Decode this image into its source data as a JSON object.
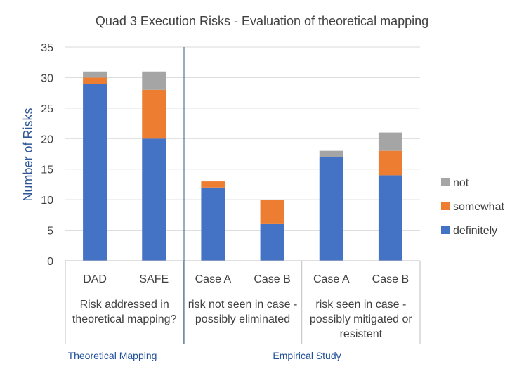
{
  "chart_data": {
    "type": "bar",
    "stacked": true,
    "title": "Quad 3  Execution Risks - Evaluation of theoretical mapping",
    "ylabel": "Number of Risks",
    "ylim": [
      0,
      35
    ],
    "yticks": [
      0,
      5,
      10,
      15,
      20,
      25,
      30,
      35
    ],
    "categories": [
      "DAD",
      "SAFE",
      "Case A",
      "Case B",
      "Case A",
      "Case B"
    ],
    "groups": [
      {
        "lines": [
          "Risk addressed in",
          "theoretical mapping?"
        ],
        "categories": [
          0,
          1
        ]
      },
      {
        "lines": [
          "risk not seen in case -",
          "possibly eliminated"
        ],
        "categories": [
          2,
          3
        ]
      },
      {
        "lines": [
          "risk seen in case -",
          "possibly mitigated or",
          "resistent"
        ],
        "categories": [
          4,
          5
        ]
      }
    ],
    "sections": [
      {
        "label": "Theoretical Mapping"
      },
      {
        "label": "Empirical Study"
      }
    ],
    "series": [
      {
        "name": "definitely",
        "color": "#4472c4",
        "values": [
          29,
          20,
          12,
          6,
          17,
          14
        ]
      },
      {
        "name": "somewhat",
        "color": "#ed7d31",
        "values": [
          1,
          8,
          1,
          4,
          0,
          4
        ]
      },
      {
        "name": "not",
        "color": "#a5a5a5",
        "values": [
          1,
          3,
          0,
          0,
          1,
          3
        ]
      }
    ],
    "legend_order": [
      "not",
      "somewhat",
      "definitely"
    ],
    "legend_position": "right"
  }
}
